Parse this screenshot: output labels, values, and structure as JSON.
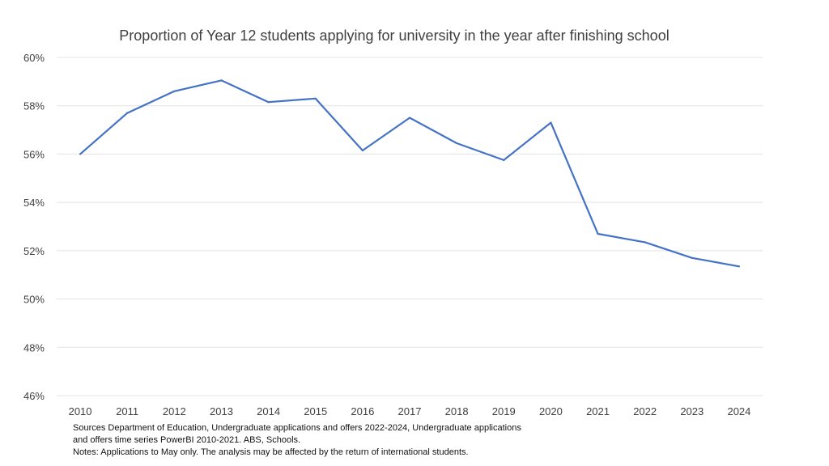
{
  "chart_data": {
    "type": "line",
    "title": "Proportion of Year 12 students applying for university in the year after finishing school",
    "xlabel": "",
    "ylabel": "",
    "categories": [
      "2010",
      "2011",
      "2012",
      "2013",
      "2014",
      "2015",
      "2016",
      "2017",
      "2018",
      "2019",
      "2020",
      "2021",
      "2022",
      "2023",
      "2024"
    ],
    "series": [
      {
        "name": "Proportion applying",
        "color": "#4472c4",
        "values": [
          56.0,
          57.7,
          58.6,
          59.05,
          58.15,
          58.3,
          56.15,
          57.5,
          56.45,
          55.75,
          57.3,
          52.7,
          52.35,
          51.7,
          51.35
        ]
      }
    ],
    "ylim": [
      46,
      60
    ],
    "yticks": [
      46,
      48,
      50,
      52,
      54,
      56,
      58,
      60
    ],
    "ytick_labels": [
      "46%",
      "48%",
      "50%",
      "52%",
      "54%",
      "56%",
      "58%",
      "60%"
    ],
    "grid": true,
    "legend": "none"
  },
  "footnotes": {
    "line1": "Sources Department of Education, Undergraduate applications and offers 2022-2024, Undergraduate applications",
    "line2": "and offers time series PowerBI 2010-2021. ABS, Schools.",
    "line3": "Notes: Applications to May only. The analysis may be affected by the return of international students."
  }
}
